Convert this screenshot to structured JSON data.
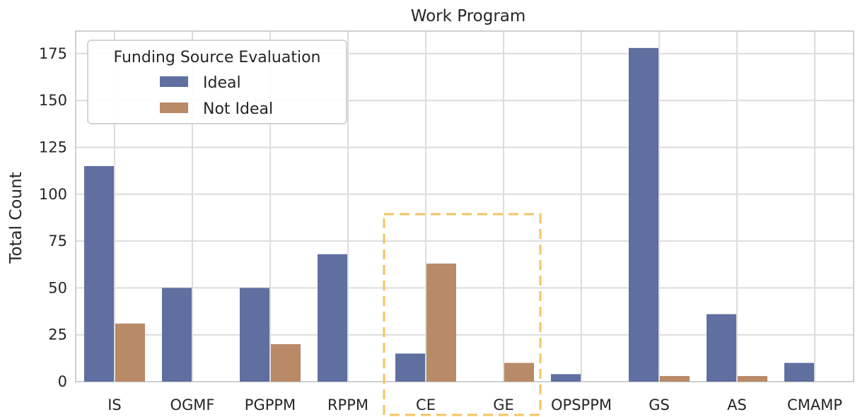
{
  "chart_data": {
    "type": "bar",
    "title": "Work Program",
    "xlabel": "",
    "ylabel": "Total Count",
    "ylim": [
      0,
      187
    ],
    "yticks": [
      0,
      25,
      50,
      75,
      100,
      125,
      150,
      175
    ],
    "grid": true,
    "categories": [
      "IS",
      "OGMF",
      "PGPPM",
      "RPPM",
      "CE",
      "GE",
      "OPSPPM",
      "GS",
      "AS",
      "CMAMP"
    ],
    "legend": {
      "title": "Funding Source Evaluation",
      "placement": "top-left"
    },
    "series": [
      {
        "name": "Ideal",
        "color": "#5f6f9f",
        "values": [
          115,
          50,
          50,
          68,
          15,
          0,
          4,
          178,
          36,
          10
        ]
      },
      {
        "name": "Not Ideal",
        "color": "#b88a68",
        "values": [
          31,
          0,
          20,
          0,
          63,
          10,
          0,
          3,
          3,
          0
        ]
      }
    ],
    "annotation": {
      "type": "dashed-box",
      "color": "#f3c465",
      "categories": [
        "CE",
        "GE"
      ]
    }
  }
}
